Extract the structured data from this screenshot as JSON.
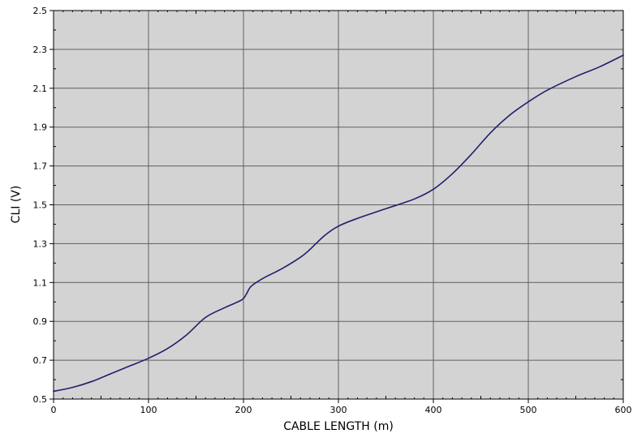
{
  "chart_data": {
    "type": "line",
    "title": "",
    "xlabel": "CABLE LENGTH (m)",
    "ylabel": "CLI (V)",
    "xlim": [
      0,
      600
    ],
    "ylim": [
      0.5,
      2.5
    ],
    "x_ticks": [
      0,
      100,
      200,
      300,
      400,
      500,
      600
    ],
    "x_tick_labels": [
      "0",
      "100",
      "200",
      "300",
      "400",
      "500",
      "600"
    ],
    "y_ticks": [
      0.5,
      0.7,
      0.9,
      1.1,
      1.3,
      1.5,
      1.7,
      1.9,
      2.1,
      2.3,
      2.5
    ],
    "y_tick_labels": [
      "0.5",
      "0.7",
      "0.9",
      "1.1",
      "1.3",
      "1.5",
      "1.7",
      "1.9",
      "2.1",
      "2.3",
      "2.5"
    ],
    "grid": true,
    "legend": "none",
    "series": [
      {
        "color": "#1f1f6e",
        "points": [
          [
            0,
            0.54
          ],
          [
            20,
            0.56
          ],
          [
            40,
            0.59
          ],
          [
            60,
            0.63
          ],
          [
            80,
            0.67
          ],
          [
            100,
            0.71
          ],
          [
            120,
            0.76
          ],
          [
            140,
            0.83
          ],
          [
            160,
            0.92
          ],
          [
            180,
            0.97
          ],
          [
            198,
            1.01
          ],
          [
            203,
            1.04
          ],
          [
            208,
            1.08
          ],
          [
            220,
            1.12
          ],
          [
            240,
            1.17
          ],
          [
            260,
            1.23
          ],
          [
            270,
            1.27
          ],
          [
            285,
            1.34
          ],
          [
            300,
            1.39
          ],
          [
            320,
            1.43
          ],
          [
            350,
            1.48
          ],
          [
            380,
            1.53
          ],
          [
            400,
            1.58
          ],
          [
            420,
            1.66
          ],
          [
            440,
            1.76
          ],
          [
            460,
            1.87
          ],
          [
            480,
            1.96
          ],
          [
            500,
            2.03
          ],
          [
            520,
            2.09
          ],
          [
            550,
            2.16
          ],
          [
            575,
            2.21
          ],
          [
            600,
            2.27
          ]
        ]
      }
    ],
    "colors": {
      "plot_background": "#d3d3d3",
      "grid": "#606060",
      "line": "#1f1f6e"
    }
  }
}
